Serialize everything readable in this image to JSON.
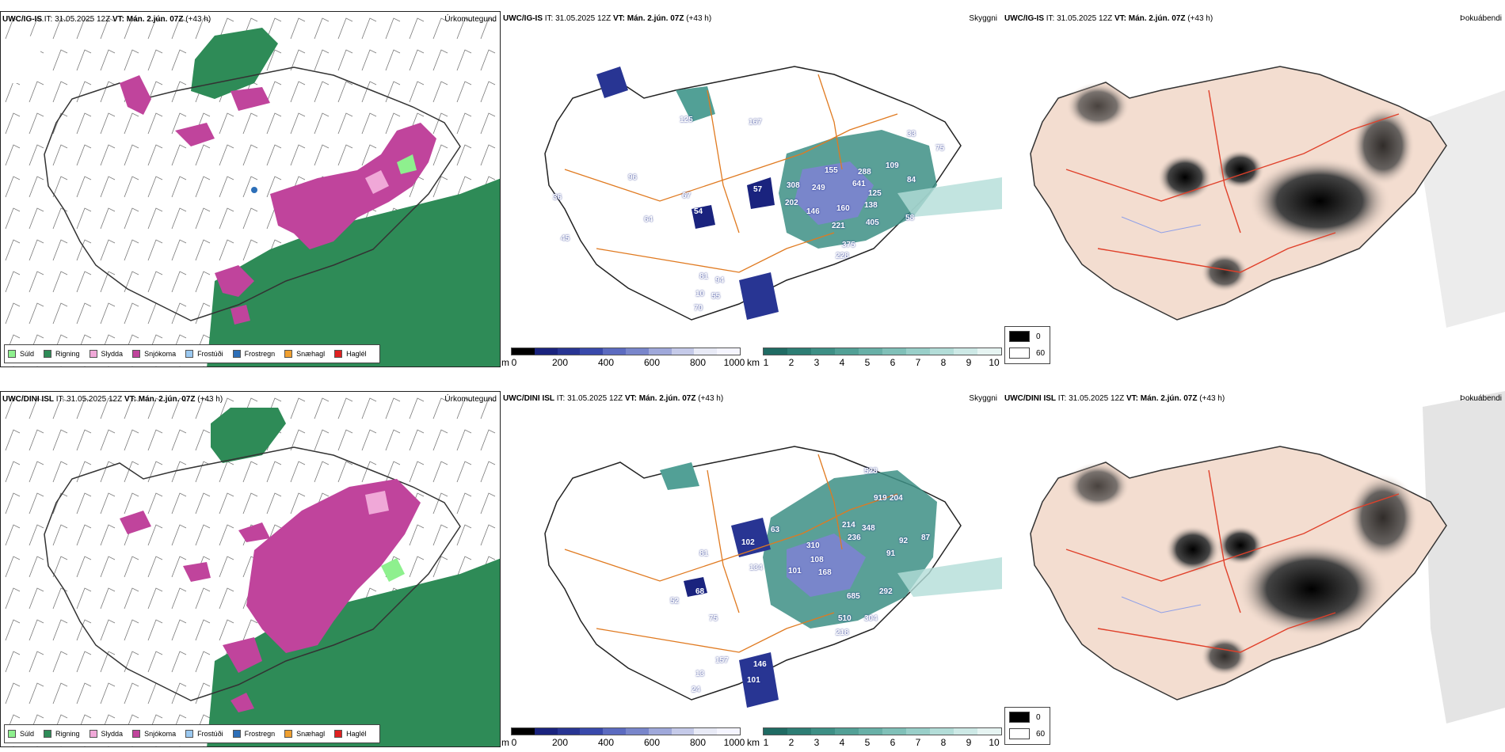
{
  "rows": [
    {
      "model": "UWC/IG-IS",
      "it_label": "IT:",
      "it_value": "31.05.2025 12Z",
      "vt_label": "VT:",
      "vt_value": "Mán. 2.jún. 07Z",
      "lead": "(+43 h)",
      "panels": {
        "precip": {
          "title": "Úrkomutegund"
        },
        "visibility": {
          "title": "Skyggni"
        },
        "fog": {
          "title": "Þokuábendi"
        }
      },
      "ceiling_labels": [
        "57",
        "54",
        "67",
        "146",
        "160",
        "221",
        "138",
        "125",
        "405",
        "375",
        "228",
        "155",
        "288",
        "641",
        "109",
        "249",
        "308",
        "202",
        "64",
        "94",
        "81",
        "55",
        "10",
        "70",
        "36",
        "45",
        "125",
        "167",
        "96",
        "84",
        "58",
        "33",
        "75"
      ]
    },
    {
      "model": "UWC/DINI ISL",
      "it_label": "IT:",
      "it_value": "31.05.2025 12Z",
      "vt_label": "VT:",
      "vt_value": "Mán. 2.jún. 07Z",
      "lead": "(+43 h)",
      "panels": {
        "precip": {
          "title": "Úrkomutegund"
        },
        "visibility": {
          "title": "Skyggni"
        },
        "fog": {
          "title": "Þokuábendi"
        }
      },
      "ceiling_labels": [
        "63",
        "102",
        "81",
        "134",
        "101",
        "168",
        "310",
        "108",
        "214",
        "236",
        "348",
        "919",
        "528",
        "204",
        "92",
        "87",
        "91",
        "292",
        "304",
        "218",
        "510",
        "685",
        "68",
        "52",
        "75",
        "157",
        "13",
        "101",
        "146",
        "24"
      ]
    }
  ],
  "precip_legend": [
    {
      "label": "Súld",
      "color": "#8ef08e"
    },
    {
      "label": "Rigning",
      "color": "#2e8b57"
    },
    {
      "label": "Slydda",
      "color": "#f0a8d8"
    },
    {
      "label": "Snjókoma",
      "color": "#c0449c"
    },
    {
      "label": "Frostúði",
      "color": "#9ac8f0"
    },
    {
      "label": "Frostregn",
      "color": "#2d6fb8"
    },
    {
      "label": "Snæhagl",
      "color": "#f0a030"
    },
    {
      "label": "Haglél",
      "color": "#e02020"
    }
  ],
  "cloud_base_bar": {
    "unit": "m",
    "ticks": [
      "0",
      "200",
      "400",
      "600",
      "800",
      "1000"
    ],
    "colors": [
      "#000000",
      "#1a237e",
      "#283593",
      "#3949ab",
      "#5c6bc0",
      "#7986cb",
      "#9fa8da",
      "#c5cae9",
      "#e8eaf6",
      "#f5f5ff"
    ]
  },
  "visibility_bar": {
    "unit": "km",
    "ticks": [
      "1",
      "2",
      "3",
      "4",
      "5",
      "6",
      "7",
      "8",
      "9",
      "10"
    ],
    "colors": [
      "#1f6b63",
      "#2d7d74",
      "#3d8f85",
      "#52a096",
      "#68b0a7",
      "#80c0b8",
      "#99cfc9",
      "#b3ddd8",
      "#cde9e6",
      "#e6f4f2"
    ]
  },
  "fog_legend": [
    {
      "label": "0",
      "color": "#000000"
    },
    {
      "label": "60",
      "color": "#ffffff"
    }
  ],
  "colors": {
    "rain": "#2e8b57",
    "snow": "#c0449c",
    "sleet": "#f0a8d8",
    "drizzle": "#8ef08e",
    "road": "#e07a20",
    "coast": "#222222",
    "fog_land": "#f3ddd0"
  }
}
